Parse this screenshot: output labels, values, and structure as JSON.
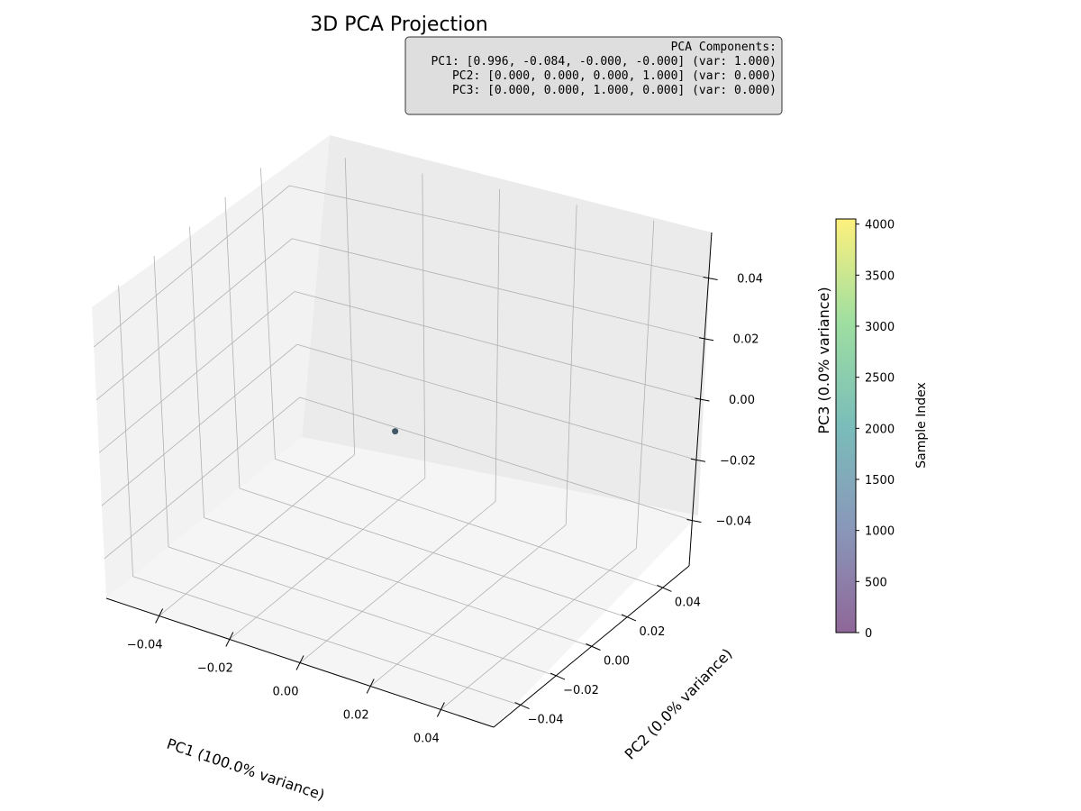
{
  "chart_data": {
    "type": "scatter",
    "projection": "3d",
    "title": "3D PCA Projection",
    "xlabel": "PC1 (100.0% variance)",
    "ylabel": "PC2 (0.0% variance)",
    "zlabel": "PC3 (0.0% variance)",
    "xlim": [
      -0.055,
      0.055
    ],
    "ylim": [
      -0.055,
      0.055
    ],
    "zlim": [
      -0.055,
      0.055
    ],
    "xticks": [
      -0.04,
      -0.02,
      0.0,
      0.02,
      0.04
    ],
    "yticks": [
      -0.04,
      -0.02,
      0.0,
      0.02,
      0.04
    ],
    "zticks": [
      -0.04,
      -0.02,
      0.0,
      0.02,
      0.04
    ],
    "xtick_labels": [
      "−0.04",
      "−0.02",
      "0.00",
      "0.02",
      "0.04"
    ],
    "ytick_labels": [
      "−0.04",
      "−0.02",
      "0.00",
      "0.02",
      "0.04"
    ],
    "ztick_labels": [
      "−0.04",
      "−0.02",
      "0.00",
      "0.02",
      "0.04"
    ],
    "grid": true,
    "points": [
      {
        "x": 0.0,
        "y": 0.0,
        "z": 0.0,
        "color_value": 2000
      }
    ],
    "marker_color": "#2f4858",
    "colorbar": {
      "label": "Sample Index",
      "range": [
        0,
        4050
      ],
      "ticks": [
        0,
        500,
        1000,
        1500,
        2000,
        2500,
        3000,
        3500,
        4000
      ],
      "colormap": "viridis",
      "alpha": 0.6
    },
    "annotation": {
      "lines": [
        "PCA Components:",
        "PC1: [0.996, -0.084, -0.000, -0.000] (var: 1.000)",
        "PC2: [0.000, 0.000, 0.000, 1.000] (var: 0.000)",
        "PC3: [0.000, 0.000, 1.000, 0.000] (var: 0.000)"
      ]
    }
  }
}
